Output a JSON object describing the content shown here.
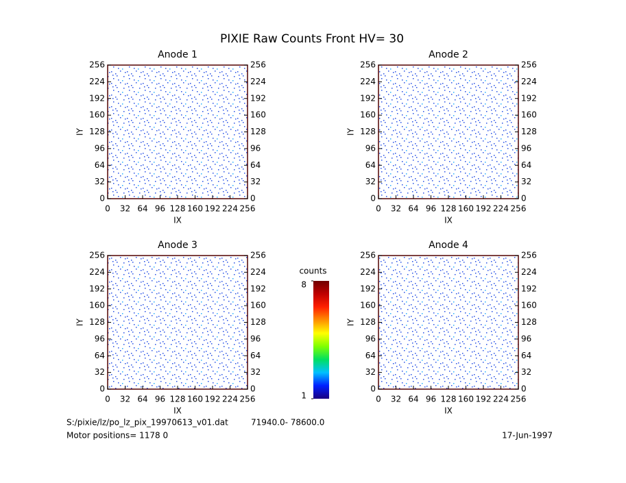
{
  "title": "PIXIE Raw Counts Front HV= 30",
  "chart_data": [
    {
      "type": "heatmap",
      "title": "Anode 1",
      "xlabel": "IX",
      "ylabel": "IY",
      "xlim": [
        0,
        256
      ],
      "ylim": [
        0,
        256
      ],
      "xticks": [
        0,
        32,
        64,
        96,
        128,
        160,
        192,
        224,
        256
      ],
      "yticks": [
        0,
        32,
        64,
        96,
        128,
        160,
        192,
        224,
        256
      ]
    },
    {
      "type": "heatmap",
      "title": "Anode 2",
      "xlabel": "IX",
      "ylabel": "IY",
      "xlim": [
        0,
        256
      ],
      "ylim": [
        0,
        256
      ],
      "xticks": [
        0,
        32,
        64,
        96,
        128,
        160,
        192,
        224,
        256
      ],
      "yticks": [
        0,
        32,
        64,
        96,
        128,
        160,
        192,
        224,
        256
      ]
    },
    {
      "type": "heatmap",
      "title": "Anode 3",
      "xlabel": "IX",
      "ylabel": "IY",
      "xlim": [
        0,
        256
      ],
      "ylim": [
        0,
        256
      ],
      "xticks": [
        0,
        32,
        64,
        96,
        128,
        160,
        192,
        224,
        256
      ],
      "yticks": [
        0,
        32,
        64,
        96,
        128,
        160,
        192,
        224,
        256
      ]
    },
    {
      "type": "heatmap",
      "title": "Anode 4",
      "xlabel": "IX",
      "ylabel": "IY",
      "xlim": [
        0,
        256
      ],
      "ylim": [
        0,
        256
      ],
      "xticks": [
        0,
        32,
        64,
        96,
        128,
        160,
        192,
        224,
        256
      ],
      "yticks": [
        0,
        32,
        64,
        96,
        128,
        160,
        192,
        224,
        256
      ]
    }
  ],
  "colorbar": {
    "label": "counts",
    "lim": [
      1,
      8
    ],
    "ticks": [
      1,
      8
    ],
    "colors": [
      "#1a0080",
      "#0020ff",
      "#00c0ff",
      "#00e060",
      "#80ff00",
      "#ffff00",
      "#ff9000",
      "#ff2000",
      "#c00000",
      "#700000"
    ]
  },
  "footer": {
    "file": "S:/pixie/lz/po_lz_pix_19970613_v01.dat",
    "range": "71940.0- 78600.0",
    "motor": "Motor positions= 1178 0",
    "date": "17-Jun-1997"
  }
}
